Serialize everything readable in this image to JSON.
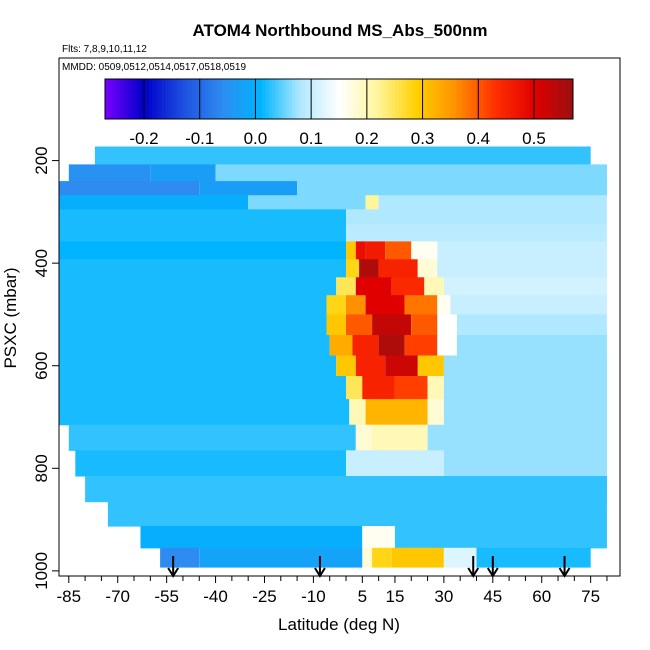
{
  "chart_data": {
    "type": "heatmap",
    "title": "ATOM4 Northbound MS_Abs_500nm",
    "subtitle_flights": "Flts: 7,8,9,10,11,12",
    "subtitle_dates": "MMDD: 0509,0512,0514,0517,0518,0519",
    "xlabel": "Latitude (deg N)",
    "ylabel": "PSXC (mbar)",
    "xlim": [
      -88,
      84
    ],
    "ylim": [
      1010,
      0
    ],
    "x_ticks": [
      -85,
      -70,
      -55,
      -40,
      -25,
      -10,
      5,
      15,
      30,
      45,
      60,
      75
    ],
    "x_tick_labels": [
      "-85",
      "-70",
      "-55",
      "-40",
      "-25",
      "-10",
      "5",
      "15",
      "30",
      "45",
      "60",
      "75"
    ],
    "y_ticks": [
      200,
      400,
      600,
      800,
      1000
    ],
    "y_tick_labels": [
      "200",
      "400",
      "600",
      "800",
      "1000"
    ],
    "colorbar": {
      "range": [
        -0.27,
        0.57
      ],
      "ticks": [
        -0.2,
        -0.1,
        0.0,
        0.1,
        0.2,
        0.3,
        0.4,
        0.5
      ],
      "tick_labels": [
        "-0.2",
        "-0.1",
        "0.0",
        "0.1",
        "0.2",
        "0.3",
        "0.4",
        "0.5"
      ],
      "colors": [
        "#7a00ff",
        "#0000c8",
        "#1e4fe0",
        "#2e8cf0",
        "#00b4ff",
        "#b0e8ff",
        "#ffffff",
        "#fff59a",
        "#ffd000",
        "#ff9000",
        "#ff3000",
        "#e00000",
        "#9a1010"
      ]
    },
    "profile_markers_latitude": [
      -53,
      -8,
      39,
      45,
      67
    ],
    "rows": [
      {
        "p": 190,
        "segments": [
          [
            -77,
            75,
            0.03
          ]
        ]
      },
      {
        "p": 225,
        "segments": [
          [
            -85,
            -60,
            -0.05
          ],
          [
            -60,
            -40,
            -0.03
          ],
          [
            -40,
            80,
            0.06
          ]
        ]
      },
      {
        "p": 255,
        "segments": [
          [
            -88,
            -45,
            -0.06
          ],
          [
            -45,
            -15,
            -0.03
          ],
          [
            -15,
            80,
            0.06
          ]
        ]
      },
      {
        "p": 280,
        "segments": [
          [
            -88,
            -30,
            0.0
          ],
          [
            -30,
            6,
            0.06
          ],
          [
            6,
            10,
            0.22
          ],
          [
            10,
            80,
            0.08
          ]
        ]
      },
      {
        "p": 310,
        "segments": [
          [
            -88,
            0,
            0.02
          ],
          [
            0,
            80,
            0.08
          ]
        ]
      },
      {
        "p": 340,
        "segments": [
          [
            -88,
            0,
            0.02
          ],
          [
            0,
            80,
            0.09
          ]
        ]
      },
      {
        "p": 375,
        "segments": [
          [
            -88,
            0,
            0.01
          ],
          [
            0,
            3,
            0.3
          ],
          [
            3,
            6,
            0.48
          ],
          [
            6,
            12,
            0.46
          ],
          [
            12,
            20,
            0.4
          ],
          [
            20,
            28,
            0.16
          ],
          [
            28,
            80,
            0.1
          ]
        ]
      },
      {
        "p": 410,
        "segments": [
          [
            -88,
            0,
            0.02
          ],
          [
            0,
            4,
            0.28
          ],
          [
            4,
            10,
            0.55
          ],
          [
            10,
            22,
            0.45
          ],
          [
            22,
            28,
            0.18
          ],
          [
            28,
            80,
            0.1
          ]
        ]
      },
      {
        "p": 445,
        "segments": [
          [
            -88,
            -3,
            0.02
          ],
          [
            -3,
            3,
            0.25
          ],
          [
            3,
            14,
            0.5
          ],
          [
            14,
            24,
            0.44
          ],
          [
            24,
            30,
            0.2
          ],
          [
            30,
            80,
            0.11
          ]
        ]
      },
      {
        "p": 480,
        "segments": [
          [
            -88,
            -6,
            0.02
          ],
          [
            -6,
            0,
            0.28
          ],
          [
            0,
            6,
            0.36
          ],
          [
            6,
            18,
            0.5
          ],
          [
            18,
            28,
            0.38
          ],
          [
            28,
            32,
            0.16
          ],
          [
            32,
            80,
            0.1
          ]
        ]
      },
      {
        "p": 520,
        "segments": [
          [
            -88,
            -6,
            0.02
          ],
          [
            -6,
            0,
            0.3
          ],
          [
            0,
            8,
            0.4
          ],
          [
            8,
            20,
            0.53
          ],
          [
            20,
            28,
            0.4
          ],
          [
            28,
            34,
            0.15
          ],
          [
            34,
            80,
            0.08
          ]
        ]
      },
      {
        "p": 560,
        "segments": [
          [
            -88,
            -5,
            0.02
          ],
          [
            -5,
            2,
            0.33
          ],
          [
            2,
            10,
            0.45
          ],
          [
            10,
            18,
            0.55
          ],
          [
            18,
            28,
            0.42
          ],
          [
            28,
            34,
            0.15
          ],
          [
            34,
            80,
            0.07
          ]
        ]
      },
      {
        "p": 600,
        "segments": [
          [
            -88,
            -3,
            0.02
          ],
          [
            -3,
            3,
            0.3
          ],
          [
            3,
            12,
            0.45
          ],
          [
            12,
            22,
            0.52
          ],
          [
            22,
            30,
            0.3
          ],
          [
            30,
            80,
            0.07
          ]
        ]
      },
      {
        "p": 640,
        "segments": [
          [
            -88,
            0,
            0.02
          ],
          [
            0,
            5,
            0.25
          ],
          [
            5,
            15,
            0.45
          ],
          [
            15,
            25,
            0.42
          ],
          [
            25,
            30,
            0.2
          ],
          [
            30,
            80,
            0.07
          ]
        ]
      },
      {
        "p": 690,
        "segments": [
          [
            -88,
            1,
            0.02
          ],
          [
            1,
            6,
            0.2
          ],
          [
            6,
            25,
            0.32
          ],
          [
            25,
            30,
            0.18
          ],
          [
            30,
            80,
            0.07
          ]
        ]
      },
      {
        "p": 740,
        "segments": [
          [
            -85,
            3,
            0.03
          ],
          [
            3,
            8,
            0.18
          ],
          [
            8,
            25,
            0.2
          ],
          [
            25,
            80,
            0.07
          ]
        ]
      },
      {
        "p": 790,
        "segments": [
          [
            -83,
            0,
            0.02
          ],
          [
            0,
            30,
            0.1
          ],
          [
            30,
            80,
            0.07
          ]
        ]
      },
      {
        "p": 840,
        "segments": [
          [
            -80,
            80,
            0.03
          ]
        ]
      },
      {
        "p": 890,
        "segments": [
          [
            -73,
            80,
            0.03
          ]
        ]
      },
      {
        "p": 935,
        "segments": [
          [
            -63,
            5,
            0.0
          ],
          [
            5,
            15,
            0.16
          ],
          [
            15,
            80,
            0.03
          ]
        ]
      },
      {
        "p": 975,
        "segments": [
          [
            -57,
            -45,
            -0.06
          ],
          [
            -45,
            5,
            -0.02
          ],
          [
            5,
            8,
            0.18
          ],
          [
            8,
            14,
            0.28
          ],
          [
            14,
            30,
            0.3
          ],
          [
            30,
            40,
            0.12
          ],
          [
            40,
            75,
            0.02
          ]
        ]
      }
    ]
  }
}
